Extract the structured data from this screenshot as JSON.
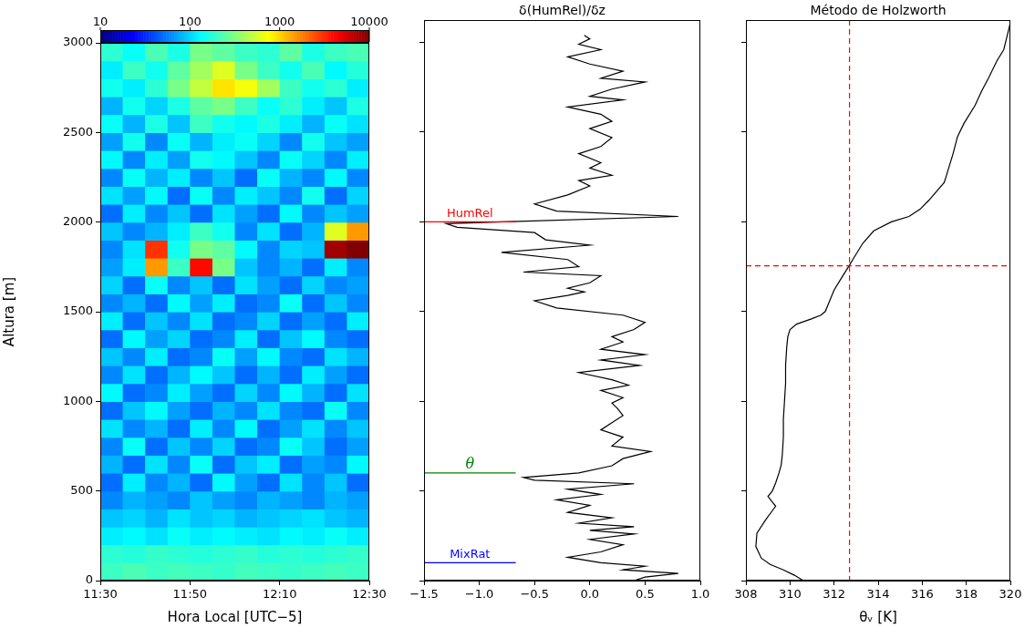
{
  "chart_data": [
    {
      "type": "heatmap",
      "xlabel": "Hora Local [UTC−5]",
      "ylabel": "Altura [m]",
      "xlim": [
        690,
        750
      ],
      "xticks": [
        {
          "value": 690,
          "label": "11:30"
        },
        {
          "value": 710,
          "label": "11:50"
        },
        {
          "value": 730,
          "label": "12:10"
        },
        {
          "value": 750,
          "label": "12:30"
        }
      ],
      "ylim": [
        0,
        3000
      ],
      "yticks": [
        0,
        500,
        1000,
        1500,
        2000,
        2500,
        3000
      ],
      "grid": false,
      "x_bins": [
        690,
        695,
        700,
        705,
        710,
        715,
        720,
        725,
        730,
        735,
        740,
        745,
        750
      ],
      "y_bins": [
        0,
        100,
        200,
        300,
        400,
        500,
        600,
        700,
        800,
        900,
        1000,
        1100,
        1200,
        1300,
        1400,
        1500,
        1600,
        1700,
        1800,
        1900,
        2000,
        2100,
        2200,
        2300,
        2400,
        2500,
        2600,
        2700,
        2800,
        2900,
        3000
      ],
      "values": [
        [
          200,
          220,
          200,
          210,
          200,
          190,
          210,
          200,
          190,
          200,
          210,
          200
        ],
        [
          180,
          170,
          190,
          180,
          170,
          180,
          190,
          170,
          180,
          170,
          180,
          190
        ],
        [
          120,
          130,
          110,
          140,
          120,
          130,
          120,
          110,
          130,
          120,
          140,
          120
        ],
        [
          90,
          100,
          80,
          110,
          90,
          100,
          80,
          90,
          100,
          110,
          90,
          80
        ],
        [
          60,
          80,
          70,
          60,
          90,
          70,
          60,
          80,
          70,
          60,
          80,
          70
        ],
        [
          50,
          120,
          60,
          80,
          50,
          130,
          70,
          50,
          110,
          60,
          90,
          50
        ],
        [
          80,
          50,
          110,
          60,
          140,
          50,
          90,
          120,
          50,
          70,
          60,
          130
        ],
        [
          60,
          140,
          50,
          90,
          60,
          100,
          50,
          60,
          140,
          90,
          50,
          70
        ],
        [
          110,
          60,
          80,
          50,
          120,
          60,
          130,
          50,
          70,
          110,
          60,
          90
        ],
        [
          50,
          90,
          130,
          70,
          50,
          80,
          60,
          110,
          60,
          50,
          140,
          60
        ],
        [
          130,
          50,
          60,
          120,
          70,
          50,
          100,
          60,
          130,
          80,
          50,
          110
        ],
        [
          60,
          110,
          50,
          80,
          130,
          90,
          50,
          80,
          50,
          120,
          70,
          50
        ],
        [
          90,
          60,
          120,
          50,
          60,
          140,
          70,
          130,
          60,
          50,
          110,
          80
        ],
        [
          50,
          130,
          70,
          100,
          50,
          60,
          120,
          50,
          90,
          130,
          60,
          50
        ],
        [
          120,
          50,
          90,
          60,
          110,
          50,
          60,
          100,
          50,
          70,
          50,
          120
        ],
        [
          60,
          80,
          50,
          130,
          70,
          120,
          50,
          60,
          140,
          50,
          90,
          60
        ],
        [
          100,
          50,
          140,
          60,
          90,
          50,
          110,
          70,
          50,
          100,
          60,
          70
        ],
        [
          70,
          120,
          1500,
          200,
          4000,
          300,
          90,
          60,
          80,
          50,
          120,
          60
        ],
        [
          60,
          110,
          3000,
          150,
          300,
          250,
          130,
          60,
          100,
          90,
          8000,
          10000
        ],
        [
          90,
          60,
          80,
          120,
          200,
          150,
          60,
          110,
          50,
          80,
          600,
          1500
        ],
        [
          50,
          120,
          60,
          90,
          50,
          110,
          70,
          50,
          130,
          60,
          90,
          70
        ],
        [
          110,
          70,
          130,
          50,
          140,
          60,
          120,
          90,
          60,
          150,
          50,
          100
        ],
        [
          60,
          140,
          80,
          120,
          60,
          90,
          50,
          140,
          80,
          60,
          130,
          60
        ],
        [
          130,
          60,
          120,
          70,
          150,
          130,
          90,
          60,
          140,
          100,
          60,
          120
        ],
        [
          70,
          150,
          60,
          140,
          80,
          120,
          140,
          100,
          60,
          150,
          90,
          70
        ],
        [
          140,
          80,
          160,
          90,
          200,
          150,
          130,
          160,
          120,
          80,
          140,
          110
        ],
        [
          80,
          150,
          100,
          160,
          250,
          300,
          200,
          140,
          180,
          120,
          90,
          160
        ],
        [
          150,
          120,
          180,
          300,
          500,
          900,
          700,
          400,
          200,
          150,
          180,
          120
        ],
        [
          120,
          200,
          150,
          250,
          400,
          600,
          300,
          200,
          150,
          220,
          130,
          170
        ],
        [
          180,
          140,
          220,
          160,
          300,
          250,
          200,
          180,
          250,
          160,
          200,
          220
        ]
      ],
      "colorbar": {
        "range": [
          10,
          10000
        ],
        "ticks": [
          10,
          100,
          1000,
          10000
        ],
        "log": true
      }
    },
    {
      "type": "line",
      "title": "δ(HumRel)/δz",
      "color": "#000000",
      "xlim": [
        -1.5,
        1.0
      ],
      "xticks": [
        {
          "value": -1.5,
          "label": "−1.5"
        },
        {
          "value": -1.0,
          "label": "−1.0"
        },
        {
          "value": -0.5,
          "label": "−0.5"
        },
        {
          "value": 0,
          "label": "0.0"
        },
        0.5,
        {
          "value": 1.0,
          "label": "1.0"
        }
      ],
      "ylim": [
        0,
        3125
      ],
      "yticks": [
        0,
        500,
        1000,
        1500,
        2000,
        2500,
        3000
      ],
      "tick_labels": "x",
      "grid": false,
      "x": [
        0.4,
        0.5,
        0.8,
        0.3,
        0.5,
        0.1,
        -0.2,
        0.1,
        0.3,
        0.0,
        0.4,
        0.0,
        0.4,
        -0.1,
        0.2,
        -0.2,
        0.0,
        -0.3,
        0.1,
        -0.2,
        0.4,
        -0.5,
        -0.6,
        -0.1,
        0.2,
        0.3,
        0.55,
        0.2,
        0.3,
        0.1,
        0.2,
        0.3,
        0.25,
        0.2,
        0.3,
        0.1,
        0.35,
        0.2,
        -0.1,
        0.45,
        0.1,
        0.5,
        0.1,
        0.3,
        0.2,
        0.4,
        0.5,
        0.3,
        -0.3,
        -0.5,
        -0.2,
        -0.05,
        -0.2,
        0.0,
        0.1,
        -0.6,
        -0.1,
        -0.2,
        -0.8,
        0.0,
        -0.4,
        -0.5,
        -1.2,
        -1.3,
        0.8,
        -0.3,
        -0.5,
        -0.2,
        0.0,
        -0.1,
        0.2,
        0.0,
        0.1,
        -0.1,
        0.1,
        0.2,
        0.0,
        0.2,
        0.1,
        -0.2,
        0.3,
        0.0,
        0.2,
        0.5,
        0.1,
        0.3,
        0.0,
        -0.2,
        0.1,
        -0.1,
        0.0,
        -0.05
      ],
      "y": [
        0,
        20,
        40,
        60,
        80,
        100,
        130,
        160,
        200,
        230,
        260,
        280,
        300,
        320,
        350,
        380,
        420,
        450,
        480,
        510,
        540,
        560,
        575,
        600,
        640,
        680,
        720,
        750,
        800,
        840,
        880,
        920,
        960,
        990,
        1020,
        1060,
        1090,
        1120,
        1160,
        1200,
        1230,
        1260,
        1290,
        1330,
        1360,
        1400,
        1440,
        1480,
        1520,
        1560,
        1590,
        1610,
        1630,
        1660,
        1700,
        1720,
        1750,
        1790,
        1830,
        1870,
        1900,
        1940,
        1970,
        1990,
        2030,
        2060,
        2100,
        2150,
        2200,
        2230,
        2260,
        2300,
        2330,
        2380,
        2420,
        2470,
        2520,
        2560,
        2600,
        2640,
        2680,
        2700,
        2740,
        2780,
        2800,
        2840,
        2880,
        2920,
        2960,
        2990,
        3020,
        3040
      ],
      "lines": [
        {
          "label": "HumRel",
          "y": 2000,
          "x": [
            -1.5,
            -0.67
          ],
          "color": "#ff0000"
        },
        {
          "label": "θ",
          "y": 600,
          "x": [
            -1.5,
            -0.67
          ],
          "color": "#008000"
        },
        {
          "label": "MixRat",
          "y": 100,
          "x": [
            -1.5,
            -0.67
          ],
          "color": "#0000ff"
        }
      ]
    },
    {
      "type": "line",
      "title": "Método de Holzworth",
      "xlabel": "θᵥ [K]",
      "color": "#000000",
      "xlim": [
        308,
        320
      ],
      "xticks": [
        308,
        310,
        312,
        314,
        316,
        318,
        320
      ],
      "ylim": [
        0,
        3125
      ],
      "yticks": [
        0,
        500,
        1000,
        1500,
        2000,
        2500,
        3000
      ],
      "tick_labels": "x",
      "grid": false,
      "x": [
        310.6,
        310.2,
        309.7,
        309.1,
        308.7,
        308.45,
        308.5,
        308.9,
        309.2,
        309.35,
        309.15,
        309.0,
        309.2,
        309.35,
        309.5,
        309.6,
        309.65,
        309.7,
        309.7,
        309.75,
        309.8,
        309.8,
        309.85,
        309.9,
        310.0,
        310.3,
        311.0,
        311.4,
        311.6,
        311.8,
        312.0,
        312.3,
        312.68,
        312.9,
        313.3,
        313.8,
        314.6,
        315.4,
        315.9,
        316.3,
        317.0,
        317.2,
        317.4,
        317.6,
        317.9,
        318.4,
        318.7,
        319.0,
        319.4,
        319.7,
        319.85,
        320.0
      ],
      "y": [
        0,
        30,
        60,
        90,
        125,
        190,
        265,
        340,
        390,
        415,
        445,
        470,
        500,
        545,
        600,
        645,
        700,
        800,
        900,
        1000,
        1100,
        1200,
        1300,
        1360,
        1400,
        1430,
        1460,
        1480,
        1500,
        1560,
        1620,
        1680,
        1755,
        1800,
        1880,
        1950,
        2000,
        2030,
        2070,
        2120,
        2220,
        2300,
        2380,
        2475,
        2550,
        2650,
        2730,
        2800,
        2900,
        2960,
        3035,
        3110
      ],
      "reference_lines": {
        "x": 312.7,
        "y": 1755,
        "color": "#ff0000",
        "line_style": "dashed"
      }
    }
  ]
}
